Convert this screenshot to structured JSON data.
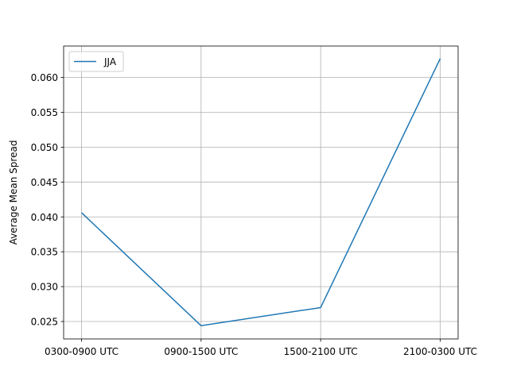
{
  "chart_data": {
    "type": "line",
    "title": "",
    "xlabel": "",
    "ylabel": "Average Mean Spread",
    "categories": [
      "0300-0900 UTC",
      "0900-1500 UTC",
      "1500-2100 UTC",
      "2100-0300 UTC"
    ],
    "series": [
      {
        "name": "JJA",
        "values": [
          0.0406,
          0.0244,
          0.027,
          0.0627
        ],
        "color": "#1f77b4"
      }
    ],
    "ylim": [
      0.0225,
      0.0645
    ],
    "yticks": [
      0.025,
      0.03,
      0.035,
      0.04,
      0.045,
      0.05,
      0.055,
      0.06
    ],
    "ytick_labels": [
      "0.025",
      "0.030",
      "0.035",
      "0.040",
      "0.045",
      "0.050",
      "0.055",
      "0.060"
    ],
    "grid": true,
    "legend": "upper-left"
  }
}
